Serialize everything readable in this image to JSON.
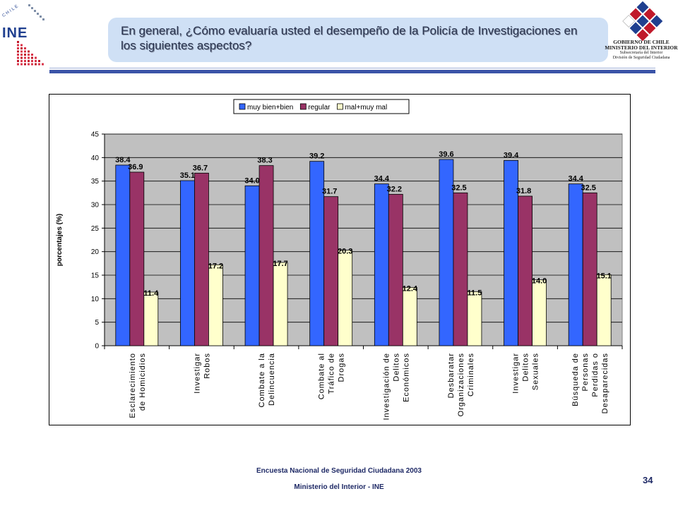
{
  "header": {
    "logo_text": "INE",
    "logo_country": "CHILE",
    "title": "En general, ¿Cómo evaluaría usted el desempeño de la Policía de Investigaciones en los siguientes aspectos?",
    "gov_lines": [
      "GOBIERNO DE CHILE",
      "MINISTERIO DEL INTERIOR",
      "Subsecretaría del Interior",
      "División de Seguridad Ciudadana"
    ]
  },
  "colors": {
    "accent": "#3b54a8",
    "title_box": "#cfe0f5",
    "plot_bg": "#c0c0c0",
    "series": [
      "#3366ff",
      "#993366",
      "#ffffcc"
    ]
  },
  "chart_data": {
    "type": "bar",
    "ylabel": "porcentajes (%)",
    "ylim": [
      0,
      45
    ],
    "yticks": [
      0,
      5,
      10,
      15,
      20,
      25,
      30,
      35,
      40,
      45
    ],
    "grid": true,
    "legend": "top-center",
    "categories": [
      [
        "Esclarecimiento",
        "de Homicidios"
      ],
      [
        "Investigar",
        "Robos"
      ],
      [
        "Combate a la",
        "Delincuencia"
      ],
      [
        "Combate al",
        "Tráfico de",
        "Drogas"
      ],
      [
        "Investigación de",
        "Delitos",
        "Económicos"
      ],
      [
        "Desbaratar",
        "Organizaciones",
        "Criminales"
      ],
      [
        "Investigar",
        "Delitos",
        "Sexuales"
      ],
      [
        "Búsqueda de",
        "Personas",
        "Perdidas o",
        "Desaparecidas"
      ]
    ],
    "series": [
      {
        "name": "muy bien+bien",
        "values": [
          38.4,
          35.1,
          34.0,
          39.2,
          34.4,
          39.6,
          39.4,
          34.4
        ]
      },
      {
        "name": "regular",
        "values": [
          36.9,
          36.7,
          38.3,
          31.7,
          32.2,
          32.5,
          31.8,
          32.5
        ]
      },
      {
        "name": "mal+muy mal",
        "values": [
          11.4,
          17.2,
          17.7,
          20.3,
          12.4,
          11.5,
          14.0,
          15.1
        ]
      }
    ]
  },
  "footer": {
    "line1": "Encuesta Nacional de Seguridad Ciudadana 2003",
    "line2": "Ministerio del Interior - INE",
    "page_number": "34"
  }
}
